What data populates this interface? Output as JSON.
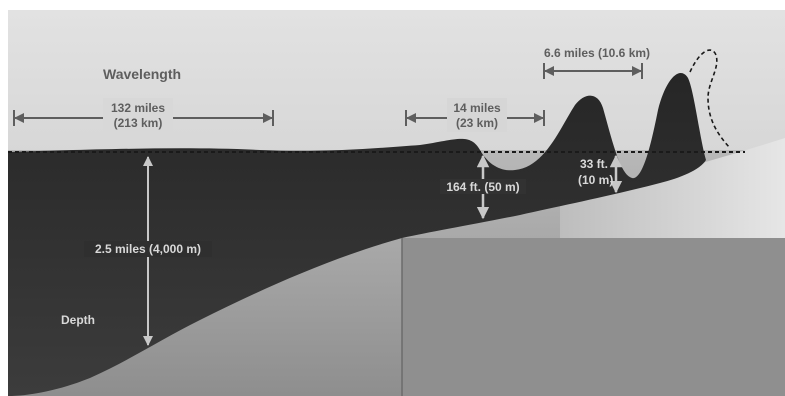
{
  "labels": {
    "wavelength": "Wavelength",
    "span_132_miles": "132 miles",
    "span_213_km": "(213 km)",
    "span_14_miles": "14 miles",
    "span_23_km": "(23 km)",
    "span_6_6_miles": "6.6 miles (10.6 km)",
    "depth_4000": "2.5 miles (4,000 m)",
    "depth_word": "Depth",
    "height_164": "164 ft. (50 m)",
    "height_33": "33 ft.",
    "height_10m": "(10 m)"
  },
  "colors": {
    "sky": "#cfcfcf",
    "water": "#2e2e2e",
    "seafloor": "#9a9a9a",
    "shelf": "#8c8c8c",
    "arrow_dark": "#5e5e5e",
    "arrow_light": "#c8c8c8"
  }
}
